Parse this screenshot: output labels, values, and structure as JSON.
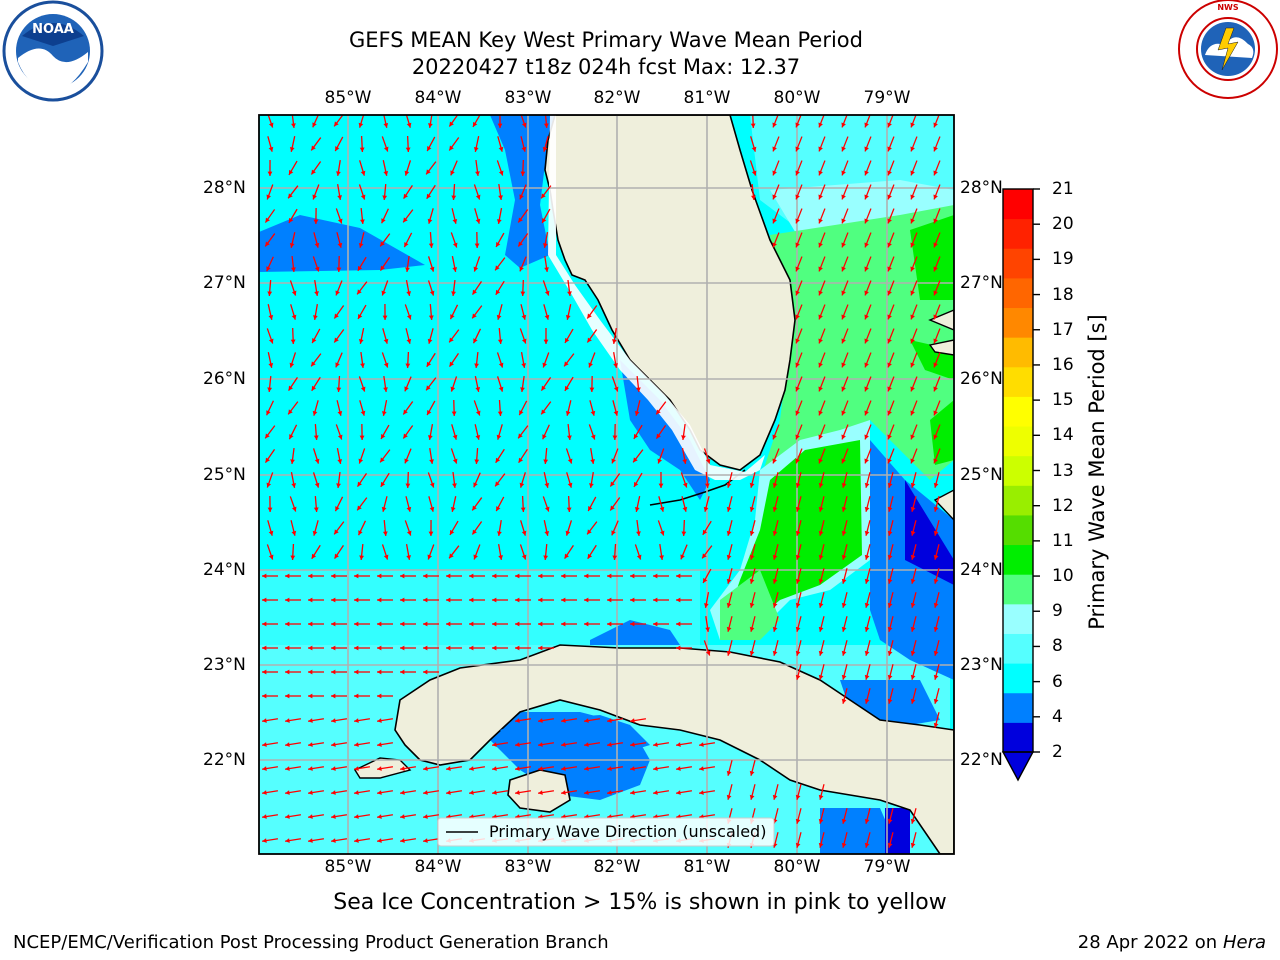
{
  "title": {
    "line1": "GEFS MEAN Key West Primary Wave Mean Period",
    "line2": "20220427 t18z 024h fcst   Max: 12.37"
  },
  "map": {
    "lon_labels": [
      "85°W",
      "84°W",
      "83°W",
      "82°W",
      "81°W",
      "80°W",
      "79°W"
    ],
    "lat_labels": [
      "28°N",
      "27°N",
      "26°N",
      "25°N",
      "24°N",
      "23°N",
      "22°N"
    ],
    "legend_text": "Primary Wave Direction (unscaled)",
    "land_color": "#efefdc",
    "arrow_color": "#ff0000"
  },
  "colorbar": {
    "label": "Primary Wave Mean Period [s]",
    "ticks": [
      "21",
      "20",
      "19",
      "18",
      "17",
      "16",
      "15",
      "14",
      "13",
      "12",
      "11",
      "10",
      "9",
      "8",
      "6",
      "4",
      "2"
    ],
    "colors": [
      "#0000dd",
      "#0080ff",
      "#00ffff",
      "#55ffff",
      "#99ffff",
      "#50ff80",
      "#00ee00",
      "#55dd00",
      "#99ee00",
      "#ccff00",
      "#eeff00",
      "#ffff00",
      "#ffdd00",
      "#ffbb00",
      "#ff8800",
      "#ff6600",
      "#ff4400",
      "#ff2200",
      "#ff0000"
    ]
  },
  "logos": {
    "left": "NOAA",
    "right": "NATIONAL WEATHER SERVICE"
  },
  "note": "Sea Ice Concentration > 15% is shown in pink to yellow",
  "footer": {
    "left": "NCEP/EMC/Verification Post Processing Product Generation Branch",
    "right_date": "28 Apr 2022 on",
    "right_machine": "Hera"
  }
}
